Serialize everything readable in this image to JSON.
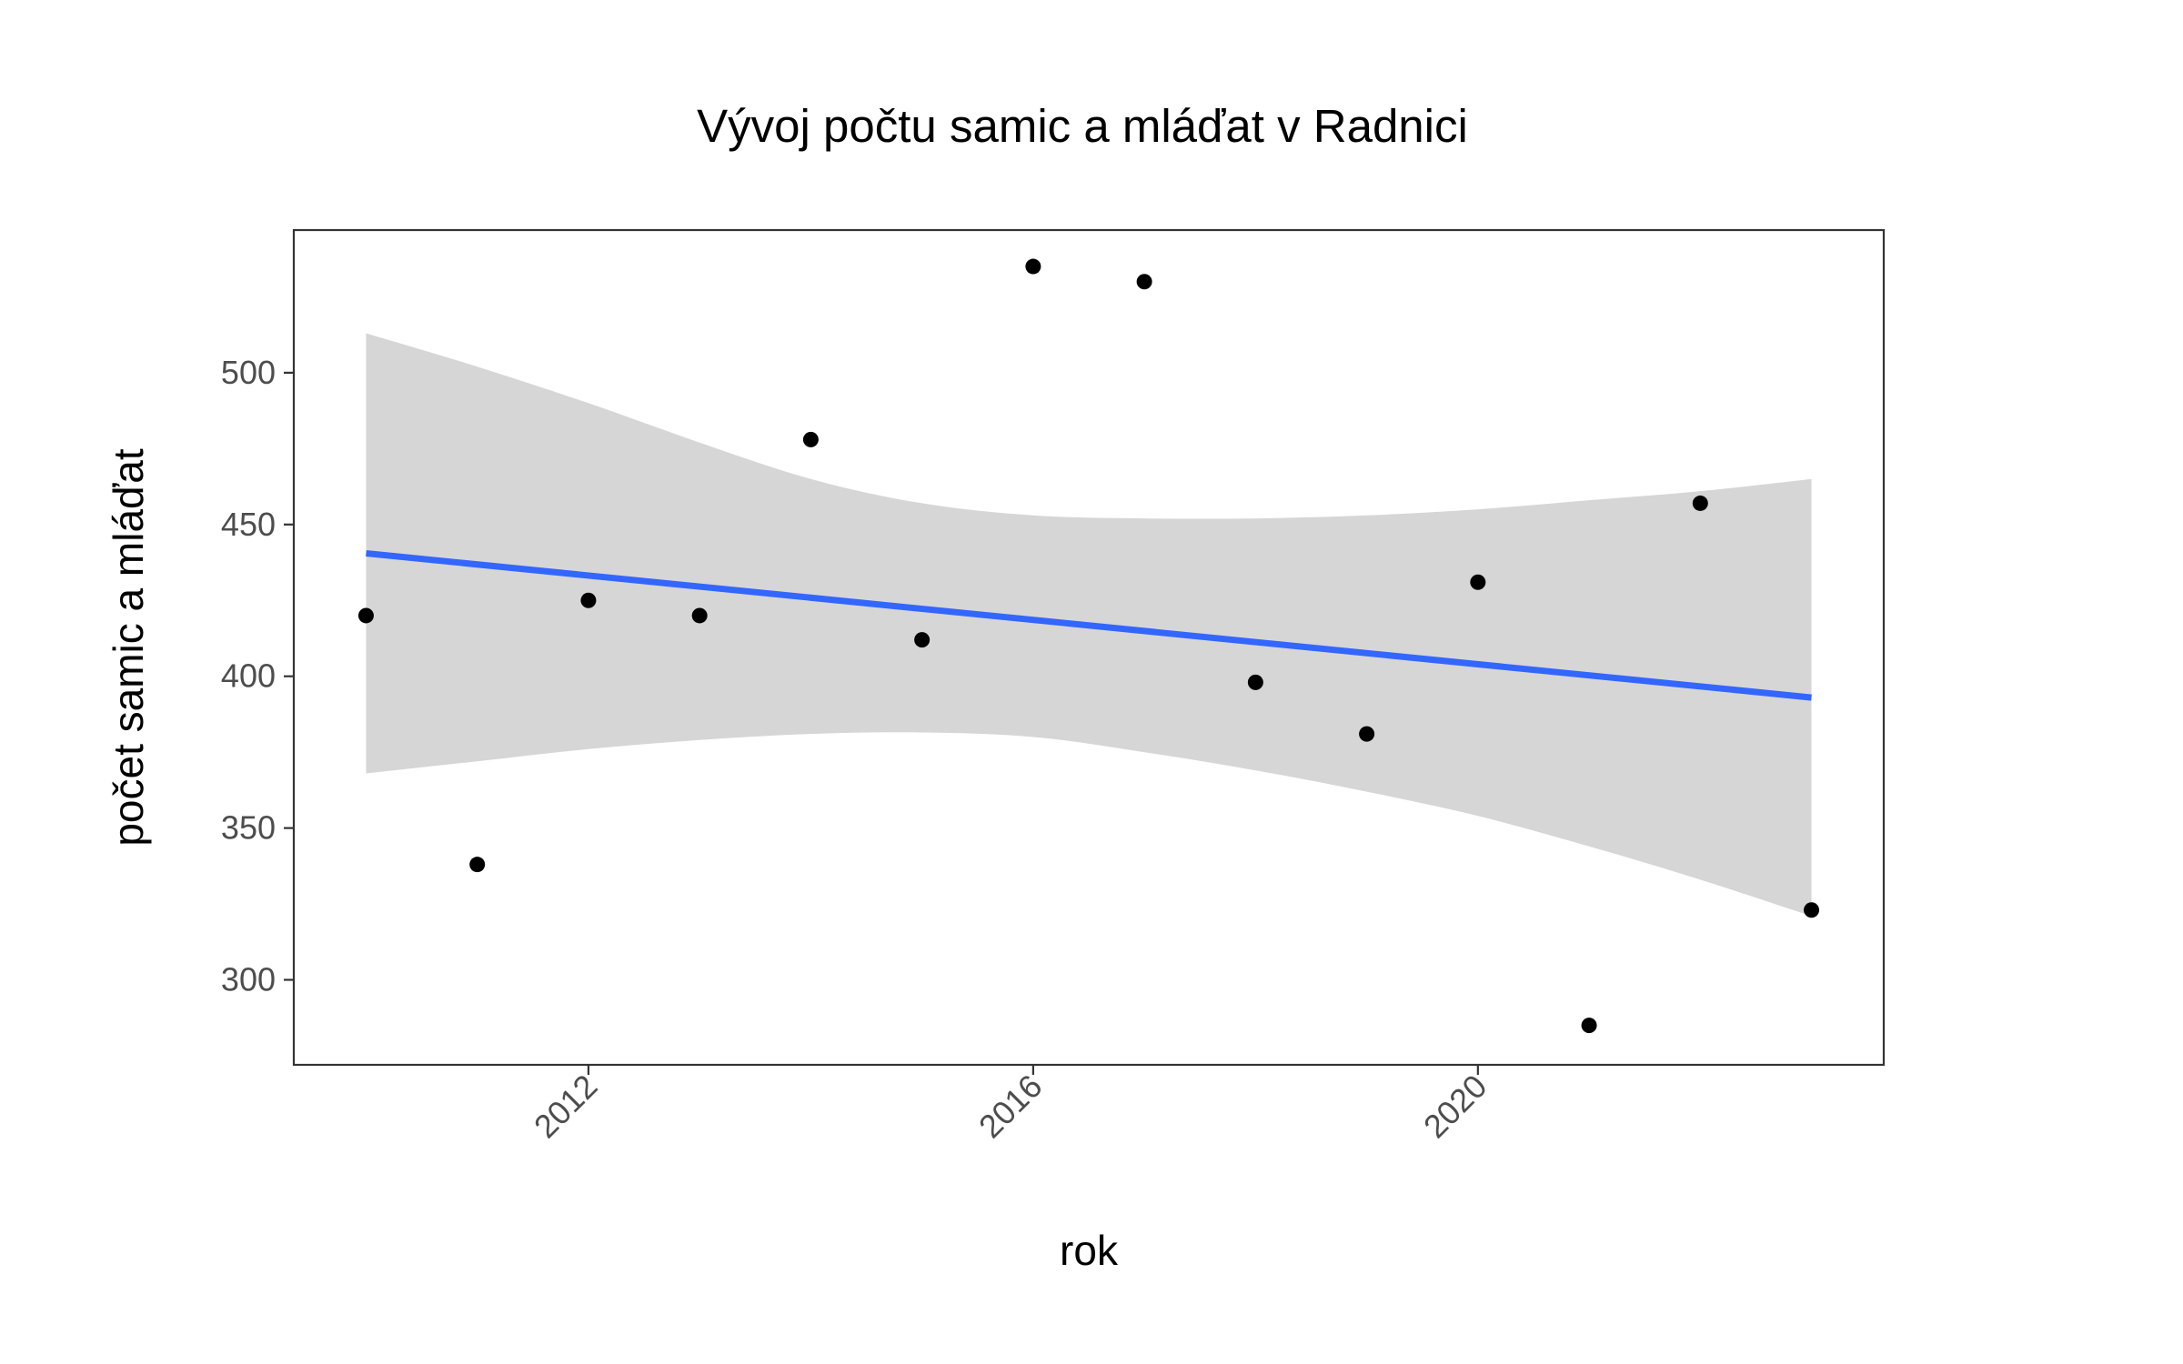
{
  "chart_data": {
    "type": "scatter",
    "title": "Vývoj počtu samic a mláďat v Radnici",
    "xlabel": "rok",
    "ylabel": "počet samic a mláďat",
    "xlim": [
      2009.35,
      2023.65
    ],
    "ylim": [
      272,
      547
    ],
    "x_ticks": [
      2012,
      2016,
      2020
    ],
    "y_ticks": [
      300,
      350,
      400,
      450,
      500
    ],
    "grid": false,
    "legend": "none",
    "colors": {
      "points": "#000000",
      "trend_line": "#3366ff",
      "confidence_band": "#d6d6d6",
      "panel_border": "#333333"
    },
    "series": [
      {
        "points": [
          {
            "x": 2010,
            "y": 420
          },
          {
            "x": 2011,
            "y": 338
          },
          {
            "x": 2012,
            "y": 425
          },
          {
            "x": 2013,
            "y": 420
          },
          {
            "x": 2014,
            "y": 478
          },
          {
            "x": 2015,
            "y": 412
          },
          {
            "x": 2016,
            "y": 535
          },
          {
            "x": 2017,
            "y": 530
          },
          {
            "x": 2018,
            "y": 398
          },
          {
            "x": 2019,
            "y": 381
          },
          {
            "x": 2020,
            "y": 431
          },
          {
            "x": 2021,
            "y": 285
          },
          {
            "x": 2022,
            "y": 457
          },
          {
            "x": 2023,
            "y": 323
          }
        ]
      }
    ],
    "trend": {
      "type": "linear",
      "start": {
        "x": 2010,
        "y": 440.5
      },
      "end": {
        "x": 2023,
        "y": 393
      }
    },
    "confidence_band": [
      {
        "x": 2010,
        "lower": 368,
        "upper": 513
      },
      {
        "x": 2011,
        "lower": 372,
        "upper": 502
      },
      {
        "x": 2012,
        "lower": 376,
        "upper": 490
      },
      {
        "x": 2013,
        "lower": 379,
        "upper": 477
      },
      {
        "x": 2014,
        "lower": 381,
        "upper": 465
      },
      {
        "x": 2015,
        "lower": 381.5,
        "upper": 457
      },
      {
        "x": 2016,
        "lower": 380,
        "upper": 453
      },
      {
        "x": 2017,
        "lower": 375,
        "upper": 452
      },
      {
        "x": 2018,
        "lower": 369,
        "upper": 452
      },
      {
        "x": 2019,
        "lower": 362,
        "upper": 453
      },
      {
        "x": 2020,
        "lower": 354,
        "upper": 455
      },
      {
        "x": 2021,
        "lower": 344,
        "upper": 458
      },
      {
        "x": 2022,
        "lower": 333,
        "upper": 461
      },
      {
        "x": 2023,
        "lower": 321,
        "upper": 465
      }
    ]
  }
}
